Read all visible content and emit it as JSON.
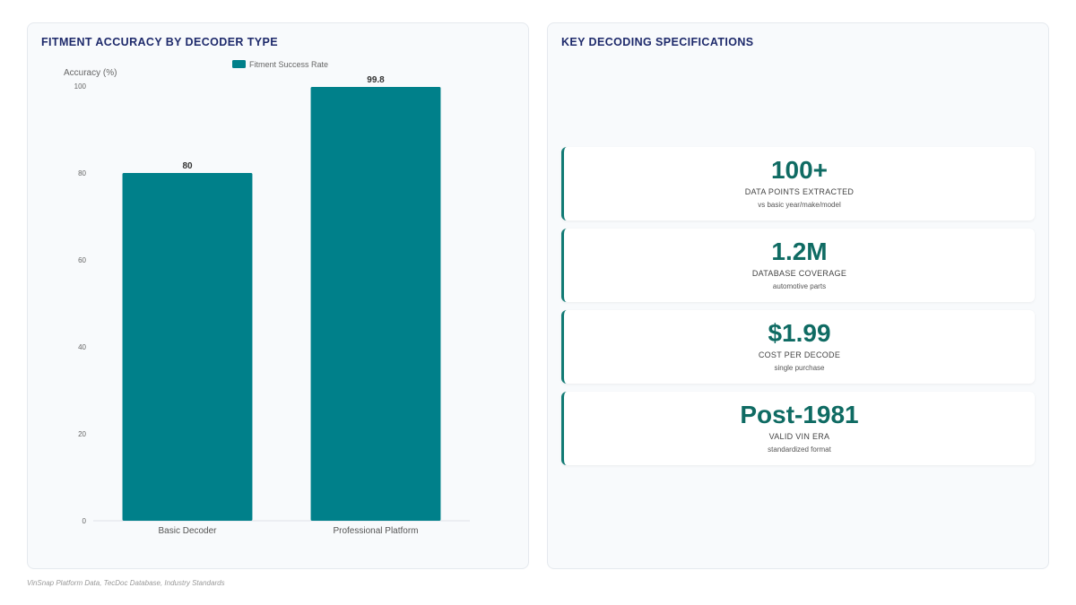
{
  "left_panel": {
    "title": "FITMENT ACCURACY BY DECODER TYPE"
  },
  "right_panel": {
    "title": "KEY DECODING SPECIFICATIONS"
  },
  "chart_data": {
    "type": "bar",
    "categories": [
      "Basic Decoder",
      "Professional Platform"
    ],
    "series": [
      {
        "name": "Fitment Success Rate",
        "values": [
          80,
          99.8
        ],
        "color": "#00808a"
      }
    ],
    "data_labels": [
      "80",
      "99.8"
    ],
    "ylabel": "Accuracy (%)",
    "ylim": [
      0,
      100
    ],
    "yticks": [
      0,
      20,
      40,
      60,
      80,
      100
    ],
    "legend": "top-center",
    "grid": false
  },
  "stats": [
    {
      "value": "100+",
      "label": "DATA POINTS EXTRACTED",
      "sub": "vs basic year/make/model"
    },
    {
      "value": "1.2M",
      "label": "DATABASE COVERAGE",
      "sub": "automotive parts"
    },
    {
      "value": "$1.99",
      "label": "COST PER DECODE",
      "sub": "single purchase"
    },
    {
      "value": "Post-1981",
      "label": "VALID VIN ERA",
      "sub": "standardized format"
    }
  ],
  "footer": {
    "source": "VinSnap Platform Data, TecDoc Database, Industry Standards"
  }
}
